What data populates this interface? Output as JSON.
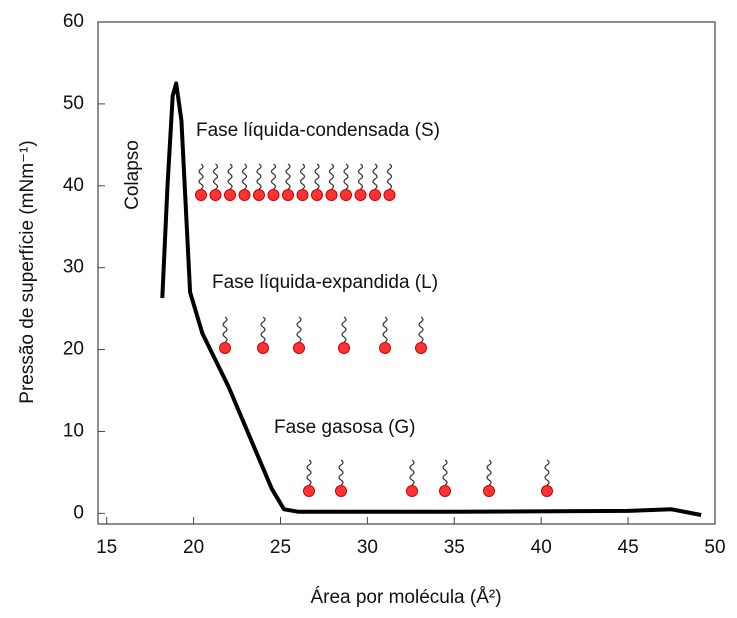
{
  "chart_data": {
    "type": "line",
    "xlabel": "Área por molécula (Å²)",
    "ylabel": "Pressão de superfície (mNm⁻¹)",
    "annotations": [
      "Colapso",
      "Fase líquida-condensada (S)",
      "Fase líquida-expandida (L)",
      "Fase gasosa (G)"
    ],
    "xlim": [
      14.5,
      50
    ],
    "xticks": [
      15,
      20,
      25,
      30,
      35,
      40,
      45,
      50
    ],
    "ylim": [
      -1.3,
      60
    ],
    "yticks": [
      0,
      10,
      20,
      30,
      40,
      50,
      60
    ],
    "color": "#000000",
    "x": [
      18.2,
      18.5,
      18.8,
      19.0,
      19.3,
      19.8,
      20.5,
      22,
      23.5,
      24.5,
      25.2,
      26,
      35,
      45,
      47.5,
      49.2
    ],
    "values": [
      26.3,
      40,
      51,
      52.5,
      48,
      27,
      22,
      15.5,
      8,
      3,
      0.5,
      0.2,
      0.2,
      0.3,
      0.5,
      -0.2
    ]
  }
}
